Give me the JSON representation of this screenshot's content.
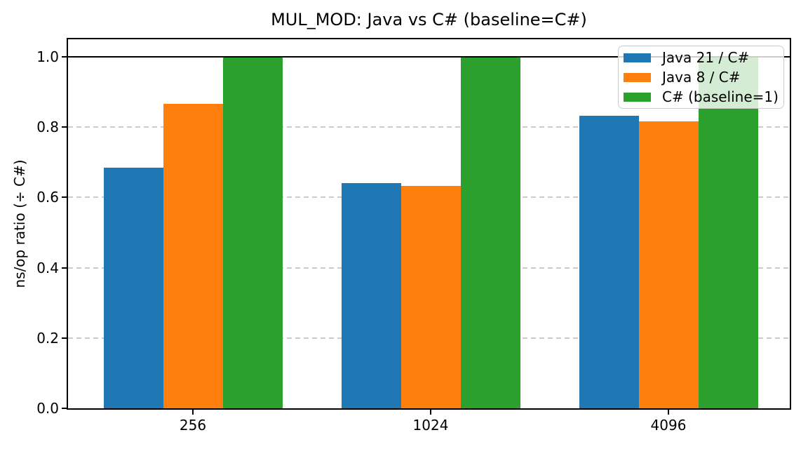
{
  "chart_data": {
    "type": "bar",
    "title": "MUL_MOD: Java vs C# (baseline=C#)",
    "categories": [
      "256",
      "1024",
      "4096"
    ],
    "series": [
      {
        "name": "Java 21 / C#",
        "color": "#1f77b4",
        "values": [
          0.684,
          0.64,
          0.832
        ]
      },
      {
        "name": "Java 8 / C#",
        "color": "#ff7f0e",
        "values": [
          0.866,
          0.632,
          0.817
        ]
      },
      {
        "name": "C# (baseline=1)",
        "color": "#2ca02c",
        "values": [
          1.0,
          1.0,
          1.0
        ]
      }
    ],
    "xlabel": "",
    "ylabel": "ns/op ratio (÷ C#)",
    "ylim": [
      0,
      1.05
    ],
    "yticks": [
      0.0,
      0.2,
      0.4,
      0.6,
      0.8,
      1.0
    ],
    "ytick_labels": [
      "0.0",
      "0.2",
      "0.4",
      "0.6",
      "0.8",
      "1.0"
    ],
    "gridline_values": [
      0.2,
      0.4,
      0.6,
      0.8
    ],
    "baseline_value": 1.0,
    "grid": "horizontal dashed",
    "legend_position": "upper right",
    "colors": {
      "grid": "#cccccc",
      "baseline": "#000000",
      "spine": "#000000",
      "text": "#000000",
      "legend_border": "#cccccc"
    }
  }
}
